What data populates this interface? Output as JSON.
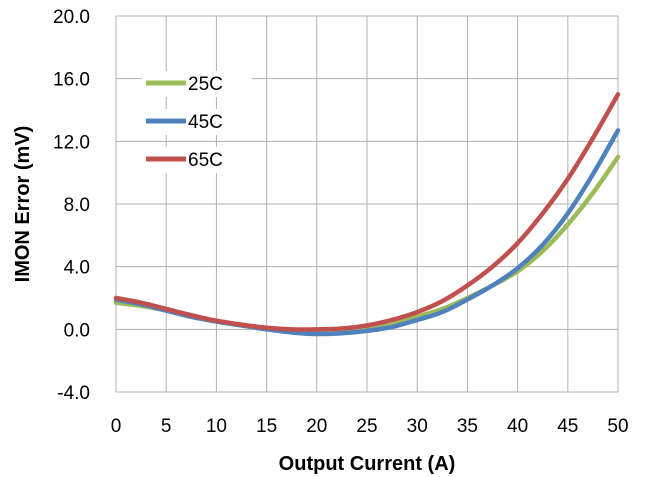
{
  "chart_data": {
    "type": "line",
    "title": "",
    "xlabel": "Output Current (A)",
    "ylabel": "IMON Error (mV)",
    "xlim": [
      0,
      50
    ],
    "ylim": [
      -4.0,
      20.0
    ],
    "xticks": [
      "0",
      "5",
      "10",
      "15",
      "20",
      "25",
      "30",
      "35",
      "40",
      "45",
      "50"
    ],
    "yticks": [
      "-4.0",
      "0.0",
      "4.0",
      "8.0",
      "12.0",
      "16.0",
      "20.0"
    ],
    "grid": true,
    "legend_position": "top-left",
    "x": [
      0,
      2.5,
      5,
      7.5,
      10,
      12.5,
      15,
      17.5,
      20,
      22.5,
      25,
      27.5,
      30,
      32.5,
      35,
      37.5,
      40,
      42.5,
      45,
      47.5,
      50
    ],
    "series": [
      {
        "name": "25C",
        "color": "#9BBB59",
        "values": [
          1.7,
          1.5,
          1.2,
          0.8,
          0.5,
          0.25,
          0.05,
          -0.1,
          -0.2,
          -0.15,
          0.0,
          0.3,
          0.8,
          1.3,
          2.0,
          2.8,
          3.7,
          5.0,
          6.7,
          8.7,
          11.0
        ]
      },
      {
        "name": "45C",
        "color": "#4F81BD",
        "values": [
          1.9,
          1.6,
          1.2,
          0.8,
          0.5,
          0.25,
          0.0,
          -0.2,
          -0.3,
          -0.25,
          -0.1,
          0.15,
          0.6,
          1.1,
          1.9,
          2.8,
          3.9,
          5.4,
          7.4,
          9.9,
          12.7
        ]
      },
      {
        "name": "65C",
        "color": "#C0504D",
        "values": [
          2.0,
          1.7,
          1.3,
          0.9,
          0.55,
          0.3,
          0.1,
          0.0,
          0.0,
          0.05,
          0.25,
          0.6,
          1.1,
          1.8,
          2.8,
          4.0,
          5.5,
          7.4,
          9.6,
          12.2,
          15.0
        ]
      }
    ]
  }
}
